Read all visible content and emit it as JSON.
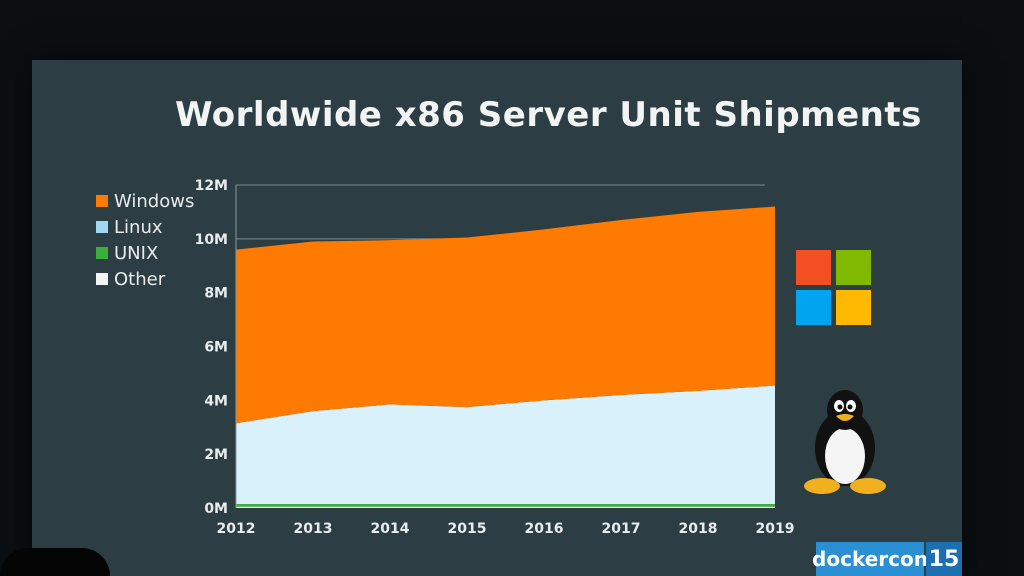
{
  "title": "Worldwide x86 Server Unit Shipments",
  "colors": {
    "windows": "#ff7a00",
    "linux": "#d8f1fb",
    "unix": "#3cae3a",
    "other": "#f4f4f4",
    "slide_bg": "#2c3e44"
  },
  "legend": [
    {
      "label": "Windows",
      "color": "#ff7a00"
    },
    {
      "label": "Linux",
      "color": "#9fd8f0"
    },
    {
      "label": "UNIX",
      "color": "#3cae3a"
    },
    {
      "label": "Other",
      "color": "#f4f4f4"
    }
  ],
  "chart_data": {
    "type": "area",
    "title": "Worldwide x86 Server Unit Shipments",
    "stacked": true,
    "x": [
      2012,
      2013,
      2014,
      2015,
      2016,
      2017,
      2018,
      2019
    ],
    "ylim": [
      0,
      12
    ],
    "y_ticks": [
      "0M",
      "2M",
      "4M",
      "6M",
      "8M",
      "10M",
      "12M"
    ],
    "x_ticks": [
      "2012",
      "2013",
      "2014",
      "2015",
      "2016",
      "2017",
      "2018",
      "2019"
    ],
    "series": [
      {
        "name": "Other",
        "values": [
          0.05,
          0.05,
          0.05,
          0.05,
          0.05,
          0.05,
          0.05,
          0.05
        ]
      },
      {
        "name": "UNIX",
        "values": [
          0.1,
          0.1,
          0.1,
          0.1,
          0.1,
          0.1,
          0.1,
          0.1
        ]
      },
      {
        "name": "Linux",
        "values": [
          3.0,
          3.45,
          3.7,
          3.6,
          3.85,
          4.05,
          4.2,
          4.4
        ]
      },
      {
        "name": "Windows",
        "values": [
          6.45,
          6.3,
          6.1,
          6.3,
          6.35,
          6.5,
          6.65,
          6.65
        ]
      }
    ],
    "grid": false,
    "legend_position": "top-left"
  },
  "branding": {
    "event": "dockercon",
    "number": "15"
  }
}
